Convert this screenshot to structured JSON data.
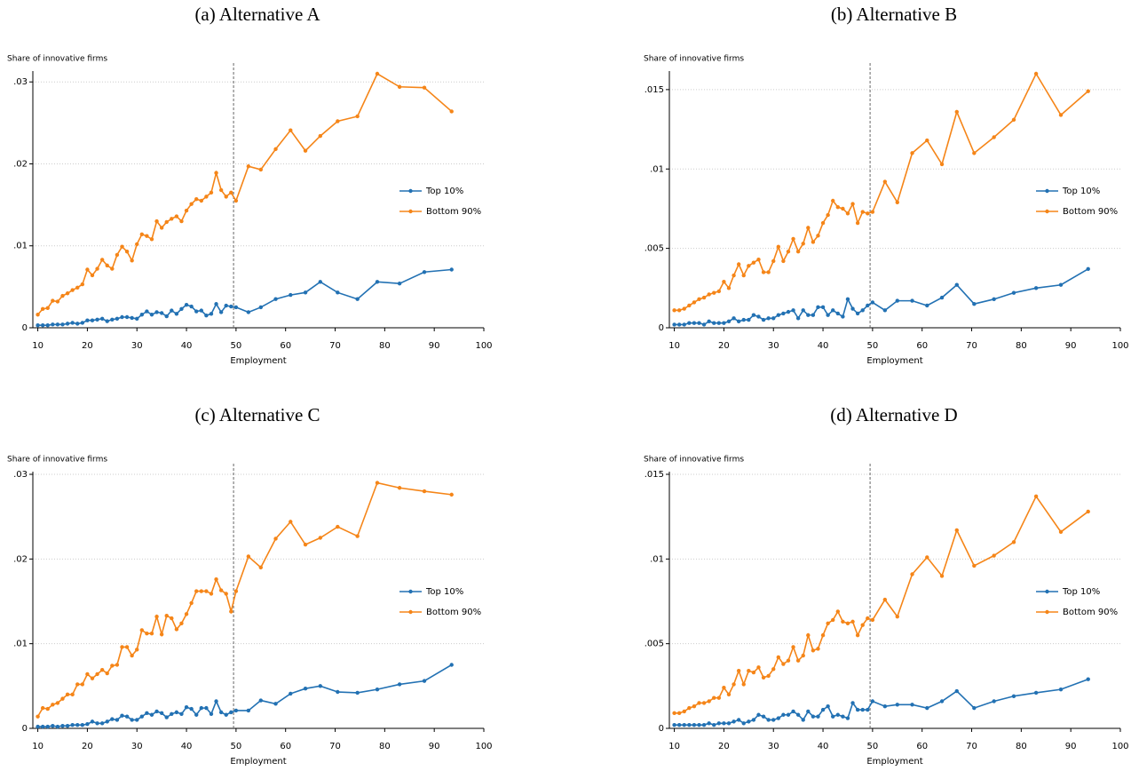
{
  "chart_data": [
    {
      "type": "line",
      "title": "(a) Alternative A",
      "y_label": "Share of innovative firms",
      "x_label": "Employment",
      "x": [
        10,
        11,
        12,
        13,
        14,
        15,
        16,
        17,
        18,
        19,
        20,
        21,
        22,
        23,
        24,
        25,
        26,
        27,
        28,
        29,
        30,
        31,
        32,
        33,
        34,
        35,
        36,
        37,
        38,
        39,
        40,
        41,
        42,
        43,
        44,
        45,
        46,
        47,
        48,
        49,
        50,
        52.5,
        55,
        58,
        61,
        64,
        67,
        70.5,
        74.5,
        78.5,
        83,
        88,
        93.5
      ],
      "series": [
        {
          "name": "Top 10%",
          "color": "#2271b3",
          "values": [
            0.0003,
            0.0003,
            0.0003,
            0.0004,
            0.0004,
            0.0004,
            0.0005,
            0.0006,
            0.0005,
            0.0006,
            0.0009,
            0.0009,
            0.001,
            0.0011,
            0.0008,
            0.001,
            0.0011,
            0.0013,
            0.0013,
            0.0012,
            0.0011,
            0.0016,
            0.002,
            0.0016,
            0.0019,
            0.0018,
            0.0014,
            0.0021,
            0.0017,
            0.0023,
            0.0028,
            0.0026,
            0.002,
            0.0021,
            0.0015,
            0.0017,
            0.0029,
            0.0019,
            0.0027,
            0.0026,
            0.0025,
            0.0019,
            0.0025,
            0.0035,
            0.004,
            0.0043,
            0.0056,
            0.0043,
            0.0035,
            0.0056,
            0.0054,
            0.0068,
            0.0071
          ]
        },
        {
          "name": "Bottom 90%",
          "color": "#f58518",
          "values": [
            0.0016,
            0.0023,
            0.0024,
            0.0033,
            0.0032,
            0.0039,
            0.0042,
            0.0046,
            0.0049,
            0.0053,
            0.0071,
            0.0064,
            0.0072,
            0.0083,
            0.0076,
            0.0072,
            0.0089,
            0.0099,
            0.0093,
            0.0082,
            0.0102,
            0.0114,
            0.0112,
            0.0108,
            0.013,
            0.0122,
            0.0129,
            0.0133,
            0.0136,
            0.013,
            0.0143,
            0.0151,
            0.0157,
            0.0155,
            0.016,
            0.0165,
            0.0189,
            0.0168,
            0.016,
            0.0165,
            0.0155,
            0.0197,
            0.0193,
            0.0218,
            0.0241,
            0.0216,
            0.0234,
            0.0252,
            0.0258,
            0.031,
            0.0294,
            0.0293,
            0.0264
          ]
        }
      ],
      "xlim": [
        9,
        100
      ],
      "xticks": [
        10,
        20,
        30,
        40,
        50,
        60,
        70,
        80,
        90,
        100
      ],
      "ylim": [
        0,
        0.031
      ],
      "yticks": [
        0,
        {
          "value": 0.01,
          "label": ".01"
        },
        {
          "value": 0.02,
          "label": ".02"
        },
        {
          "value": 0.03,
          "label": ".03"
        }
      ],
      "vline": 49.5,
      "grid": true,
      "legend": "right"
    },
    {
      "type": "line",
      "title": "(b) Alternative B",
      "y_label": "Share of innovative firms",
      "x_label": "Employment",
      "x": [
        10,
        11,
        12,
        13,
        14,
        15,
        16,
        17,
        18,
        19,
        20,
        21,
        22,
        23,
        24,
        25,
        26,
        27,
        28,
        29,
        30,
        31,
        32,
        33,
        34,
        35,
        36,
        37,
        38,
        39,
        40,
        41,
        42,
        43,
        44,
        45,
        46,
        47,
        48,
        49,
        50,
        52.5,
        55,
        58,
        61,
        64,
        67,
        70.5,
        74.5,
        78.5,
        83,
        88,
        93.5
      ],
      "series": [
        {
          "name": "Top 10%",
          "color": "#2271b3",
          "values": [
            0.0002,
            0.0002,
            0.0002,
            0.0003,
            0.0003,
            0.0003,
            0.0002,
            0.0004,
            0.0003,
            0.0003,
            0.0003,
            0.0004,
            0.0006,
            0.0004,
            0.0005,
            0.0005,
            0.0008,
            0.0007,
            0.0005,
            0.0006,
            0.0006,
            0.0008,
            0.0009,
            0.001,
            0.0011,
            0.0006,
            0.0011,
            0.0008,
            0.0008,
            0.0013,
            0.0013,
            0.0008,
            0.0011,
            0.0009,
            0.0007,
            0.0018,
            0.0012,
            0.0009,
            0.0011,
            0.0014,
            0.0016,
            0.0011,
            0.0017,
            0.0017,
            0.0014,
            0.0019,
            0.0027,
            0.0015,
            0.0018,
            0.0022,
            0.0025,
            0.0027,
            0.0037
          ]
        },
        {
          "name": "Bottom 90%",
          "color": "#f58518",
          "values": [
            0.0011,
            0.0011,
            0.0012,
            0.0014,
            0.0016,
            0.0018,
            0.0019,
            0.0021,
            0.0022,
            0.0023,
            0.0029,
            0.0025,
            0.0033,
            0.004,
            0.0033,
            0.0039,
            0.0041,
            0.0043,
            0.0035,
            0.0035,
            0.0042,
            0.0051,
            0.0042,
            0.0048,
            0.0056,
            0.0048,
            0.0053,
            0.0063,
            0.0054,
            0.0058,
            0.0066,
            0.0071,
            0.008,
            0.0076,
            0.0075,
            0.0072,
            0.0078,
            0.0066,
            0.0073,
            0.0072,
            0.0073,
            0.0092,
            0.0079,
            0.011,
            0.0118,
            0.0103,
            0.0136,
            0.011,
            0.012,
            0.0131,
            0.016,
            0.0134,
            0.0149
          ]
        }
      ],
      "xlim": [
        9,
        100
      ],
      "xticks": [
        10,
        20,
        30,
        40,
        50,
        60,
        70,
        80,
        90,
        100
      ],
      "ylim": [
        0,
        0.016
      ],
      "yticks": [
        0,
        {
          "value": 0.005,
          "label": ".005"
        },
        {
          "value": 0.01,
          "label": ".01"
        },
        {
          "value": 0.015,
          "label": ".015"
        }
      ],
      "vline": 49.5,
      "grid": true,
      "legend": "right"
    },
    {
      "type": "line",
      "title": "(c) Alternative C",
      "y_label": "Share of innovative firms",
      "x_label": "Employment",
      "x": [
        10,
        11,
        12,
        13,
        14,
        15,
        16,
        17,
        18,
        19,
        20,
        21,
        22,
        23,
        24,
        25,
        26,
        27,
        28,
        29,
        30,
        31,
        32,
        33,
        34,
        35,
        36,
        37,
        38,
        39,
        40,
        41,
        42,
        43,
        44,
        45,
        46,
        47,
        48,
        49,
        50,
        52.5,
        55,
        58,
        61,
        64,
        67,
        70.5,
        74.5,
        78.5,
        83,
        88,
        93.5
      ],
      "series": [
        {
          "name": "Top 10%",
          "color": "#2271b3",
          "values": [
            0.0002,
            0.0002,
            0.0002,
            0.0003,
            0.0002,
            0.0003,
            0.0003,
            0.0004,
            0.0004,
            0.0004,
            0.0005,
            0.0008,
            0.0006,
            0.0006,
            0.0008,
            0.0011,
            0.001,
            0.0015,
            0.0014,
            0.001,
            0.001,
            0.0014,
            0.0018,
            0.0016,
            0.002,
            0.0018,
            0.0013,
            0.0017,
            0.0019,
            0.0017,
            0.0025,
            0.0023,
            0.0016,
            0.0024,
            0.0024,
            0.0017,
            0.0032,
            0.0019,
            0.0016,
            0.0019,
            0.0021,
            0.0021,
            0.0033,
            0.0029,
            0.0041,
            0.0047,
            0.005,
            0.0043,
            0.0042,
            0.0046,
            0.0052,
            0.0056,
            0.0075
          ]
        },
        {
          "name": "Bottom 90%",
          "color": "#f58518",
          "values": [
            0.0014,
            0.0024,
            0.0023,
            0.0028,
            0.003,
            0.0035,
            0.004,
            0.004,
            0.0052,
            0.0052,
            0.0064,
            0.0059,
            0.0064,
            0.0069,
            0.0065,
            0.0074,
            0.0075,
            0.0096,
            0.0096,
            0.0086,
            0.0093,
            0.0116,
            0.0112,
            0.0112,
            0.0132,
            0.0111,
            0.0133,
            0.013,
            0.0117,
            0.0124,
            0.0135,
            0.0148,
            0.0162,
            0.0162,
            0.0162,
            0.0159,
            0.0176,
            0.0163,
            0.0159,
            0.0138,
            0.0162,
            0.0203,
            0.019,
            0.0224,
            0.0244,
            0.0217,
            0.0225,
            0.0238,
            0.0227,
            0.029,
            0.0284,
            0.028,
            0.0276
          ]
        }
      ],
      "xlim": [
        9,
        100
      ],
      "xticks": [
        10,
        20,
        30,
        40,
        50,
        60,
        70,
        80,
        90,
        100
      ],
      "ylim": [
        0,
        0.03
      ],
      "yticks": [
        0,
        {
          "value": 0.01,
          "label": ".01"
        },
        {
          "value": 0.02,
          "label": ".02"
        },
        {
          "value": 0.03,
          "label": ".03"
        }
      ],
      "vline": 49.5,
      "grid": true,
      "legend": "right"
    },
    {
      "type": "line",
      "title": "(d) Alternative D",
      "y_label": "Share of innovative firms",
      "x_label": "Employment",
      "x": [
        10,
        11,
        12,
        13,
        14,
        15,
        16,
        17,
        18,
        19,
        20,
        21,
        22,
        23,
        24,
        25,
        26,
        27,
        28,
        29,
        30,
        31,
        32,
        33,
        34,
        35,
        36,
        37,
        38,
        39,
        40,
        41,
        42,
        43,
        44,
        45,
        46,
        47,
        48,
        49,
        50,
        52.5,
        55,
        58,
        61,
        64,
        67,
        70.5,
        74.5,
        78.5,
        83,
        88,
        93.5
      ],
      "series": [
        {
          "name": "Top 10%",
          "color": "#2271b3",
          "values": [
            0.0002,
            0.0002,
            0.0002,
            0.0002,
            0.0002,
            0.0002,
            0.0002,
            0.0003,
            0.0002,
            0.0003,
            0.0003,
            0.0003,
            0.0004,
            0.0005,
            0.0003,
            0.0004,
            0.0005,
            0.0008,
            0.0007,
            0.0005,
            0.0005,
            0.0006,
            0.0008,
            0.0008,
            0.001,
            0.0008,
            0.0005,
            0.001,
            0.0007,
            0.0007,
            0.0011,
            0.0013,
            0.0007,
            0.0008,
            0.0007,
            0.0006,
            0.0015,
            0.0011,
            0.0011,
            0.0011,
            0.0016,
            0.0013,
            0.0014,
            0.0014,
            0.0012,
            0.0016,
            0.0022,
            0.0012,
            0.0016,
            0.0019,
            0.0021,
            0.0023,
            0.0029
          ]
        },
        {
          "name": "Bottom 90%",
          "color": "#f58518",
          "values": [
            0.0009,
            0.0009,
            0.001,
            0.0012,
            0.0013,
            0.0015,
            0.0015,
            0.0016,
            0.0018,
            0.0018,
            0.0024,
            0.002,
            0.0026,
            0.0034,
            0.0026,
            0.0034,
            0.0033,
            0.0036,
            0.003,
            0.0031,
            0.0035,
            0.0042,
            0.0038,
            0.004,
            0.0048,
            0.004,
            0.0043,
            0.0055,
            0.0046,
            0.0047,
            0.0055,
            0.0062,
            0.0064,
            0.0069,
            0.0063,
            0.0062,
            0.0063,
            0.0055,
            0.0061,
            0.0065,
            0.0064,
            0.0076,
            0.0066,
            0.0091,
            0.0101,
            0.009,
            0.0117,
            0.0096,
            0.0102,
            0.011,
            0.0137,
            0.0116,
            0.0128
          ]
        }
      ],
      "xlim": [
        9,
        100
      ],
      "xticks": [
        10,
        20,
        30,
        40,
        50,
        60,
        70,
        80,
        90,
        100
      ],
      "ylim": [
        0,
        0.015
      ],
      "yticks": [
        0,
        {
          "value": 0.005,
          "label": ".005"
        },
        {
          "value": 0.01,
          "label": ".01"
        },
        {
          "value": 0.015,
          "label": ".015"
        }
      ],
      "vline": 49.5,
      "grid": true,
      "legend": "right"
    }
  ]
}
